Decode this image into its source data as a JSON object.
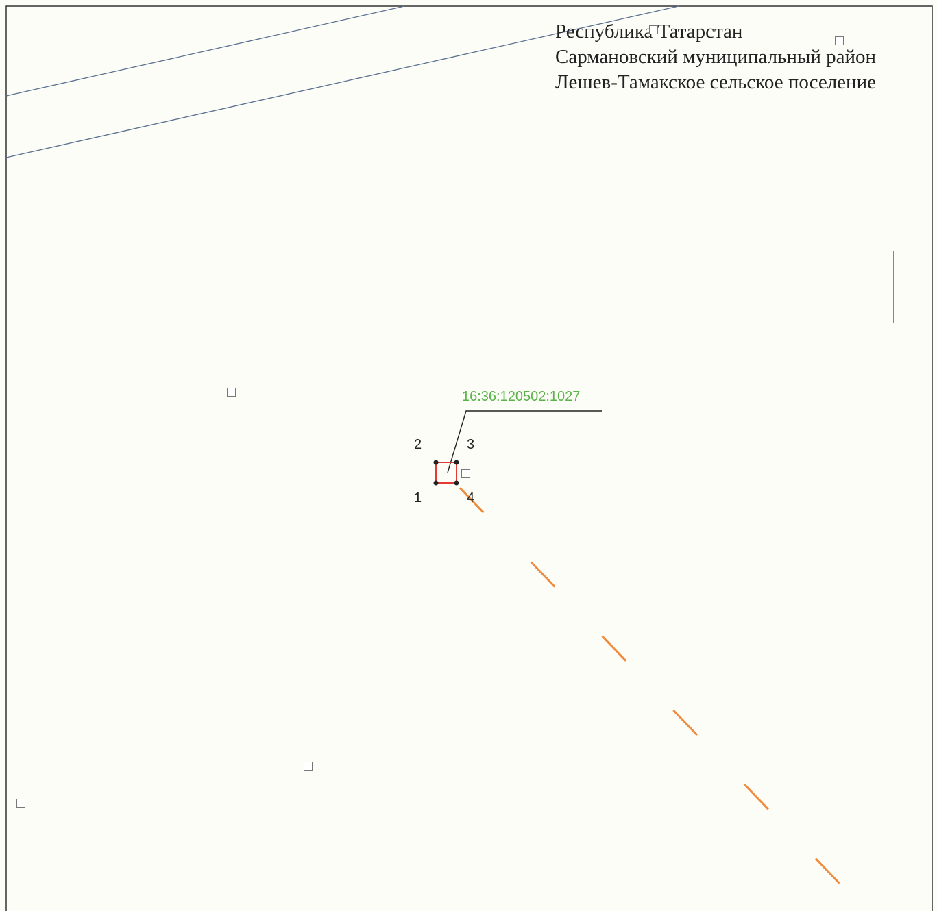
{
  "header": {
    "line1": "Республика Татарстан",
    "line2": "Сармановский муниципальный район",
    "line3": "Лешев-Тамакское сельское поселение"
  },
  "parcel": {
    "cadastral_number": "16:36:120502:1027",
    "points": [
      "1",
      "2",
      "3",
      "4"
    ],
    "outline_color": "#e53935",
    "label_color": "#5ab44a"
  },
  "colors": {
    "background": "#fdfdf7",
    "road_line": "#5a6f8f",
    "dashed_line": "#f08a3c",
    "frame": "#333333"
  }
}
